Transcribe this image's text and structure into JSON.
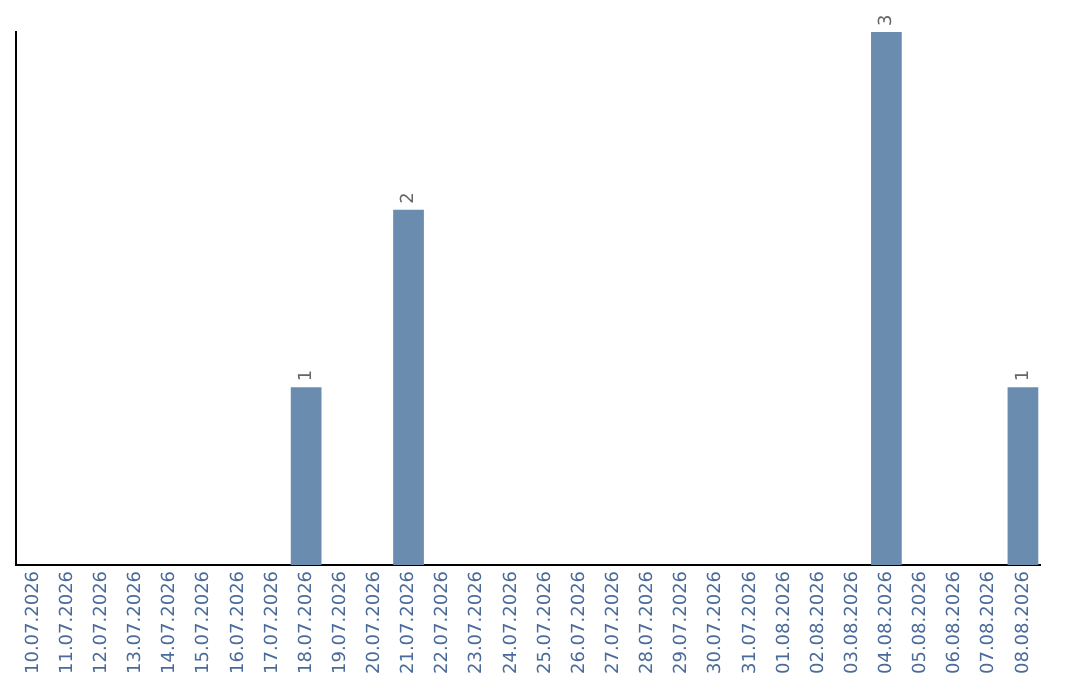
{
  "chart_data": {
    "type": "bar",
    "categories": [
      "10.07.2026",
      "11.07.2026",
      "12.07.2026",
      "13.07.2026",
      "14.07.2026",
      "15.07.2026",
      "16.07.2026",
      "17.07.2026",
      "18.07.2026",
      "19.07.2026",
      "20.07.2026",
      "21.07.2026",
      "22.07.2026",
      "23.07.2026",
      "24.07.2026",
      "25.07.2026",
      "26.07.2026",
      "27.07.2026",
      "28.07.2026",
      "29.07.2026",
      "30.07.2026",
      "31.07.2026",
      "01.08.2026",
      "02.08.2026",
      "03.08.2026",
      "04.08.2026",
      "05.08.2026",
      "06.08.2026",
      "07.08.2026",
      "08.08.2026"
    ],
    "values": [
      0,
      0,
      0,
      0,
      0,
      0,
      0,
      0,
      1,
      0,
      0,
      2,
      0,
      0,
      0,
      0,
      0,
      0,
      0,
      0,
      0,
      0,
      0,
      0,
      0,
      3,
      0,
      0,
      0,
      1
    ],
    "value_labels": [
      null,
      null,
      null,
      null,
      null,
      null,
      null,
      null,
      "1",
      null,
      null,
      "2",
      null,
      null,
      null,
      null,
      null,
      null,
      null,
      null,
      null,
      null,
      null,
      null,
      null,
      "3",
      null,
      null,
      null,
      "1"
    ],
    "color": "#6a8caf",
    "grid": false,
    "legend": false
  }
}
